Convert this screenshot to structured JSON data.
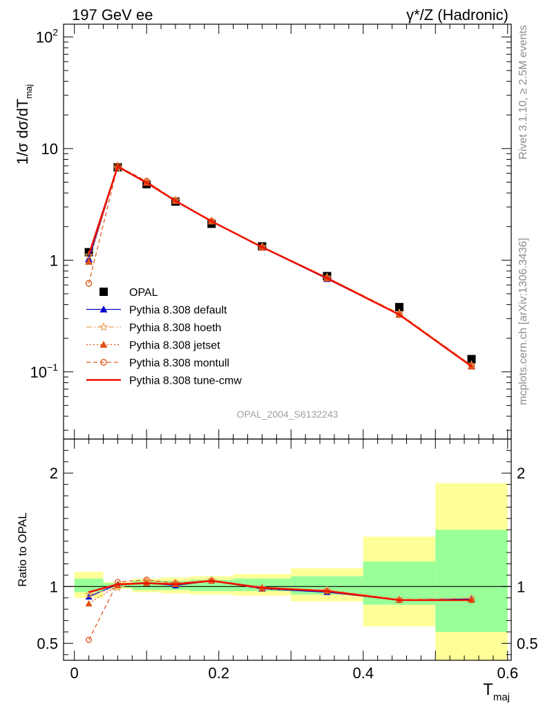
{
  "header": {
    "left": "197 GeV ee",
    "right": "γ*/Z (Hadronic)"
  },
  "side_labels": {
    "rivet": "Rivet 3.1.10, ≥ 2.5M events",
    "mcplots": "mcplots.cern.ch [arXiv:1306.3436]"
  },
  "watermark": "OPAL_2004_S6132243",
  "colors": {
    "opal": "#000000",
    "default": "#0000cc",
    "hoeth": "#e8a860",
    "jetset": "#e05010",
    "montull": "#e05a20",
    "cmw": "#ee1100",
    "band_inner": "#99ff99",
    "band_outer": "#ffff99"
  },
  "chart_data": [
    {
      "type": "scatter",
      "panel": "main",
      "ylabel": "1/σ dσ/dT",
      "ylabel_sub": "maj",
      "yscale": "log",
      "ylim": [
        0.025,
        130
      ],
      "xlim": [
        -0.015,
        0.605
      ],
      "y_ticks": [
        {
          "value": 0.1,
          "base": "10",
          "exp": "−1"
        },
        {
          "value": 1,
          "base": "1",
          "exp": ""
        },
        {
          "value": 10,
          "base": "10",
          "exp": ""
        },
        {
          "value": 100,
          "base": "10",
          "exp": "2"
        }
      ],
      "legend_position": "lower-left",
      "series": [
        {
          "name": "OPAL",
          "key": "opal",
          "marker": "square",
          "line": "none",
          "x": [
            0.02,
            0.06,
            0.1,
            0.14,
            0.19,
            0.26,
            0.35,
            0.45,
            0.55
          ],
          "y": [
            1.18,
            6.8,
            4.8,
            3.35,
            2.12,
            1.33,
            0.72,
            0.38,
            0.13
          ]
        },
        {
          "name": "Pythia 8.308 default",
          "key": "default",
          "marker": "triangle",
          "line": "solid",
          "x": [
            0.02,
            0.06,
            0.1,
            0.14,
            0.19,
            0.26,
            0.35,
            0.45,
            0.55
          ],
          "y": [
            1.02,
            6.85,
            4.95,
            3.4,
            2.23,
            1.3,
            0.68,
            0.325,
            0.112
          ]
        },
        {
          "name": "Pythia 8.308 hoeth",
          "key": "hoeth",
          "marker": "star",
          "line": "dashdot",
          "x": [
            0.02,
            0.06,
            0.1,
            0.14,
            0.19,
            0.26,
            0.35,
            0.45,
            0.55
          ],
          "y": [
            1.1,
            6.7,
            5.05,
            3.45,
            2.25,
            1.32,
            0.7,
            0.335,
            0.115
          ]
        },
        {
          "name": "Pythia 8.308 jetset",
          "key": "jetset",
          "marker": "triangle",
          "line": "dotted",
          "x": [
            0.02,
            0.06,
            0.1,
            0.14,
            0.19,
            0.26,
            0.35,
            0.45,
            0.55
          ],
          "y": [
            0.97,
            6.9,
            4.95,
            3.4,
            2.24,
            1.31,
            0.69,
            0.325,
            0.112
          ]
        },
        {
          "name": "Pythia 8.308 montull",
          "key": "montull",
          "marker": "circle",
          "line": "dashed",
          "x": [
            0.02,
            0.06,
            0.1,
            0.14,
            0.19,
            0.26,
            0.35,
            0.45,
            0.55
          ],
          "y": [
            0.62,
            7.0,
            5.1,
            3.42,
            2.23,
            1.3,
            0.69,
            0.325,
            0.113
          ]
        },
        {
          "name": "Pythia 8.308 tune-cmw",
          "key": "cmw",
          "marker": "none",
          "line": "solid-thick",
          "x": [
            0.02,
            0.06,
            0.1,
            0.14,
            0.19,
            0.26,
            0.35,
            0.45,
            0.55
          ],
          "y": [
            1.12,
            6.9,
            4.95,
            3.4,
            2.23,
            1.31,
            0.69,
            0.325,
            0.112
          ]
        }
      ]
    },
    {
      "type": "line",
      "panel": "ratio",
      "ylabel": "Ratio to OPAL",
      "xlabel": "T",
      "xlabel_sub": "maj",
      "ylim": [
        0.35,
        2.3
      ],
      "xlim": [
        -0.015,
        0.605
      ],
      "reference": 1,
      "x_ticks": [
        "0",
        "0.2",
        "0.4",
        "0.6"
      ],
      "x_tick_values": [
        0,
        0.2,
        0.4,
        0.6
      ],
      "y_ticks": [
        "0.5",
        "1",
        "2"
      ],
      "y_tick_values": [
        0.5,
        1,
        2
      ],
      "bins": [
        {
          "lo": 0.0,
          "hi": 0.04,
          "inner": [
            0.95,
            1.07
          ],
          "outer": [
            0.9,
            1.13
          ]
        },
        {
          "lo": 0.04,
          "hi": 0.08,
          "inner": [
            0.99,
            1.03
          ],
          "outer": [
            0.98,
            1.04
          ]
        },
        {
          "lo": 0.08,
          "hi": 0.12,
          "inner": [
            0.97,
            1.05
          ],
          "outer": [
            0.95,
            1.07
          ]
        },
        {
          "lo": 0.12,
          "hi": 0.16,
          "inner": [
            0.97,
            1.05
          ],
          "outer": [
            0.94,
            1.08
          ]
        },
        {
          "lo": 0.16,
          "hi": 0.22,
          "inner": [
            0.96,
            1.06
          ],
          "outer": [
            0.93,
            1.09
          ]
        },
        {
          "lo": 0.22,
          "hi": 0.3,
          "inner": [
            0.96,
            1.07
          ],
          "outer": [
            0.92,
            1.11
          ]
        },
        {
          "lo": 0.3,
          "hi": 0.4,
          "inner": [
            0.93,
            1.09
          ],
          "outer": [
            0.87,
            1.16
          ]
        },
        {
          "lo": 0.4,
          "hi": 0.5,
          "inner": [
            0.84,
            1.22
          ],
          "outer": [
            0.65,
            1.44
          ]
        },
        {
          "lo": 0.5,
          "hi": 0.6,
          "inner": [
            0.6,
            1.5
          ],
          "outer": [
            0.35,
            1.91
          ]
        }
      ],
      "series": [
        {
          "name": "Pythia 8.308 default",
          "key": "default",
          "marker": "triangle",
          "line": "solid",
          "x": [
            0.02,
            0.06,
            0.1,
            0.14,
            0.19,
            0.26,
            0.35,
            0.45,
            0.55
          ],
          "y": [
            0.91,
            1.02,
            1.03,
            1.01,
            1.05,
            0.98,
            0.95,
            0.88,
            0.89
          ]
        },
        {
          "name": "Pythia 8.308 hoeth",
          "key": "hoeth",
          "marker": "star",
          "line": "dashdot",
          "x": [
            0.02,
            0.06,
            0.1,
            0.14,
            0.19,
            0.26,
            0.35,
            0.45,
            0.55
          ],
          "y": [
            0.93,
            0.99,
            1.05,
            1.03,
            1.06,
            0.99,
            0.97,
            0.89,
            0.9
          ]
        },
        {
          "name": "Pythia 8.308 jetset",
          "key": "jetset",
          "marker": "triangle",
          "line": "dotted",
          "x": [
            0.02,
            0.06,
            0.1,
            0.14,
            0.19,
            0.26,
            0.35,
            0.45,
            0.55
          ],
          "y": [
            0.85,
            1.01,
            1.03,
            1.02,
            1.05,
            0.99,
            0.96,
            0.88,
            0.88
          ]
        },
        {
          "name": "Pythia 8.308 montull",
          "key": "montull",
          "marker": "circle",
          "line": "dashed",
          "x": [
            0.02,
            0.06,
            0.1,
            0.14,
            0.19,
            0.26,
            0.35,
            0.45,
            0.55
          ],
          "y": [
            0.53,
            1.04,
            1.06,
            1.03,
            1.05,
            0.98,
            0.96,
            0.88,
            0.88
          ]
        },
        {
          "name": "Pythia 8.308 tune-cmw",
          "key": "cmw",
          "marker": "none",
          "line": "solid-thick",
          "x": [
            0.02,
            0.06,
            0.1,
            0.14,
            0.19,
            0.26,
            0.35,
            0.45,
            0.55
          ],
          "y": [
            0.95,
            1.02,
            1.03,
            1.02,
            1.05,
            0.99,
            0.96,
            0.88,
            0.88
          ]
        }
      ]
    }
  ]
}
